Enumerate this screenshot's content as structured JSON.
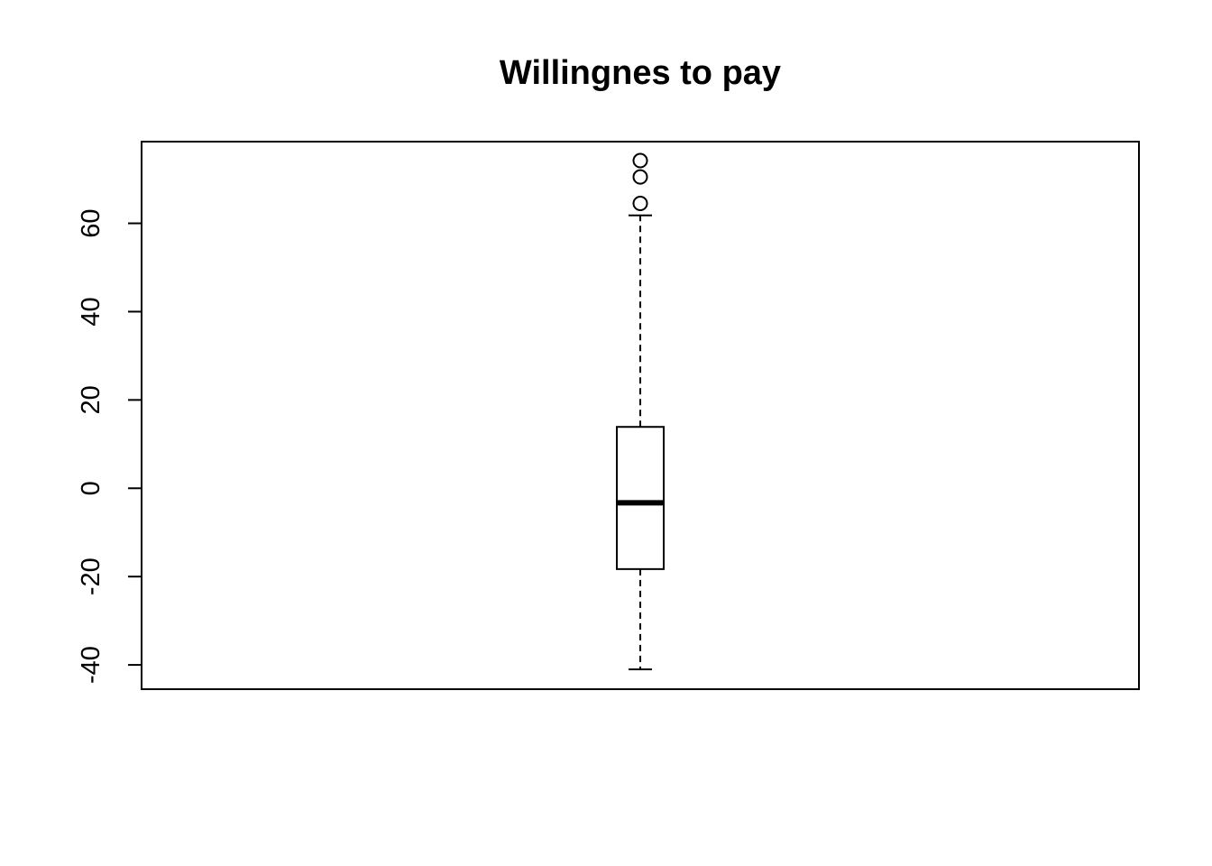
{
  "chart_data": {
    "type": "boxplot",
    "title": "Willingnes to pay",
    "xlabel": "",
    "ylabel": "",
    "ylim": [
      -45.5,
      78.5
    ],
    "yticks": [
      -40,
      -20,
      0,
      20,
      40,
      60
    ],
    "ytick_labels": [
      "-40",
      "-20",
      "0",
      "20",
      "40",
      "60"
    ],
    "grid": false,
    "box": {
      "lower_whisker": -41,
      "q1": -18.3,
      "median": -3.3,
      "q3": 13.9,
      "upper_whisker": 61.8,
      "outliers": [
        64.5,
        70.5,
        74.2
      ]
    },
    "colors": {
      "stroke": "#000000",
      "background": "#ffffff"
    }
  }
}
